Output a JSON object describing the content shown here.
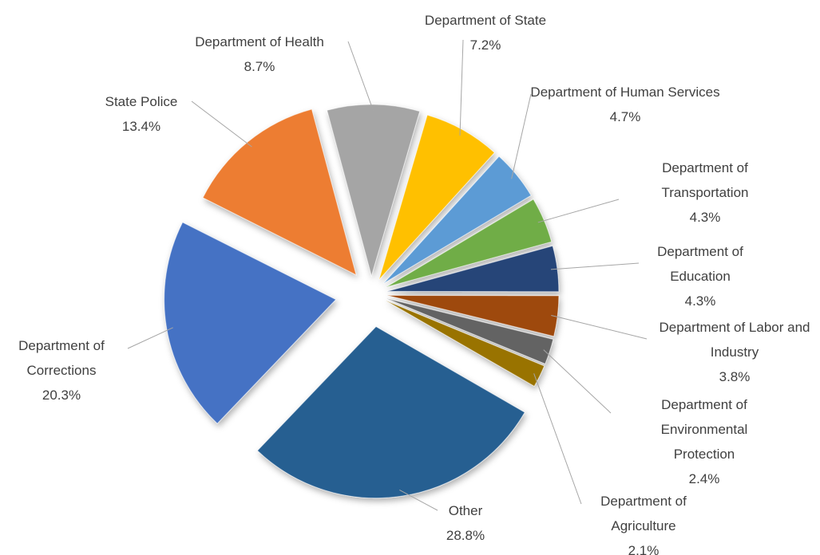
{
  "chart_data": {
    "type": "pie",
    "categories": [
      "Department of Health",
      "Department of State",
      "Department of Human Services",
      "Department of Transportation",
      "Department of Education",
      "Department of Labor and Industry",
      "Department of Environmental Protection",
      "Department of Agriculture",
      "Other",
      "Department of Corrections",
      "State Police"
    ],
    "values": [
      8.7,
      7.2,
      4.7,
      4.3,
      4.3,
      3.8,
      2.4,
      2.1,
      28.8,
      20.3,
      13.4
    ],
    "value_labels": [
      "8.7%",
      "7.2%",
      "4.7%",
      "4.3%",
      "4.3%",
      "3.8%",
      "2.4%",
      "2.1%",
      "28.8%",
      "20.3%",
      "13.4%"
    ],
    "colors": [
      "#a5a5a5",
      "#ffc000",
      "#5b9bd5",
      "#70ad47",
      "#264478",
      "#9e480e",
      "#636363",
      "#997300",
      "#255e91",
      "#4472c4",
      "#ed7d31"
    ]
  }
}
